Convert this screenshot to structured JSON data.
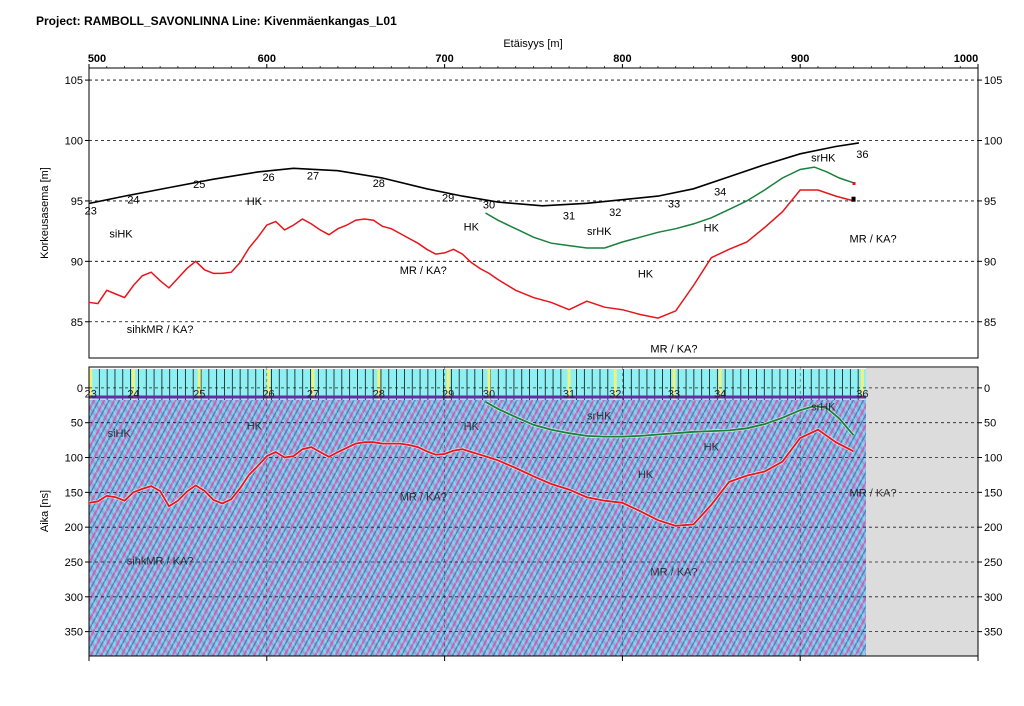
{
  "page": {
    "title": "Project: RAMBOLL_SAVONLINNA  Line: Kivenmäenkangas_L01"
  },
  "colors": {
    "surface": "#000000",
    "interface_red": "#e8141b",
    "interface_green": "#17813a",
    "radar_bg": "#7dc9e6",
    "radar_magenta": "#d452b4",
    "radar_blue": "#2f3fa6",
    "marker_strip": "#8ff0f4",
    "no_data": "#dcdcdc"
  },
  "chart_data": [
    {
      "id": "elevation-profile",
      "type": "line",
      "xlabel": "Etäisyys [m]",
      "ylabel": "Korkeusasema [m]",
      "xlim": [
        500,
        1000
      ],
      "ylim": [
        82,
        106
      ],
      "x_ticks": [
        500,
        600,
        700,
        800,
        900,
        1000
      ],
      "y_ticks": [
        85,
        90,
        95,
        100,
        105
      ],
      "grid": "horizontal-dashed",
      "series": [
        {
          "role": "surface",
          "x": [
            497,
            520,
            545,
            570,
            595,
            615,
            640,
            665,
            690,
            710,
            730,
            755,
            780,
            800,
            820,
            840,
            860,
            880,
            900,
            920,
            933
          ],
          "y": [
            94.7,
            95.4,
            96.1,
            96.8,
            97.4,
            97.7,
            97.5,
            96.9,
            96.0,
            95.4,
            94.9,
            94.6,
            94.8,
            95.1,
            95.4,
            96.0,
            97.0,
            98.0,
            98.9,
            99.5,
            99.8
          ]
        },
        {
          "role": "interface_green",
          "x": [
            723,
            730,
            740,
            750,
            760,
            770,
            780,
            790,
            800,
            810,
            820,
            830,
            840,
            850,
            860,
            870,
            880,
            890,
            900,
            908,
            915,
            922,
            930
          ],
          "y": [
            94.0,
            93.4,
            92.7,
            92.0,
            91.5,
            91.3,
            91.1,
            91.1,
            91.6,
            92.0,
            92.4,
            92.7,
            93.1,
            93.6,
            94.3,
            95.0,
            95.9,
            96.9,
            97.6,
            97.8,
            97.4,
            96.9,
            96.5
          ]
        },
        {
          "role": "interface_red",
          "x": [
            497,
            500,
            505,
            510,
            515,
            520,
            525,
            530,
            535,
            540,
            545,
            550,
            555,
            560,
            565,
            570,
            575,
            580,
            585,
            590,
            595,
            600,
            605,
            610,
            615,
            620,
            625,
            630,
            635,
            640,
            645,
            650,
            655,
            660,
            665,
            670,
            675,
            680,
            685,
            690,
            695,
            700,
            705,
            710,
            715,
            720,
            725,
            730,
            740,
            750,
            760,
            770,
            780,
            790,
            800,
            810,
            820,
            830,
            840,
            850,
            860,
            870,
            880,
            890,
            900,
            910,
            920,
            930
          ],
          "y": [
            86.0,
            86.6,
            86.5,
            87.6,
            87.3,
            87.0,
            88.0,
            88.8,
            89.1,
            88.4,
            87.8,
            88.6,
            89.4,
            90.0,
            89.3,
            89.0,
            89.0,
            89.1,
            89.9,
            91.1,
            92.0,
            93.0,
            93.3,
            92.6,
            93.0,
            93.5,
            93.1,
            92.6,
            92.2,
            92.7,
            93.0,
            93.4,
            93.5,
            93.4,
            92.9,
            92.7,
            92.3,
            91.9,
            91.5,
            91.0,
            90.6,
            90.7,
            91.0,
            90.6,
            89.9,
            89.4,
            89.0,
            88.5,
            87.6,
            87.0,
            86.6,
            86.0,
            86.7,
            86.2,
            86.0,
            85.6,
            85.3,
            85.9,
            88.0,
            90.3,
            91.0,
            91.6,
            92.8,
            94.1,
            95.9,
            95.9,
            95.4,
            95.0
          ]
        }
      ],
      "markers": [
        {
          "label": "23",
          "x": 501,
          "y": 94.2
        },
        {
          "label": "24",
          "x": 525,
          "y": 95.1
        },
        {
          "label": "25",
          "x": 562,
          "y": 96.4
        },
        {
          "label": "26",
          "x": 601,
          "y": 97.0
        },
        {
          "label": "27",
          "x": 626,
          "y": 97.1
        },
        {
          "label": "28",
          "x": 663,
          "y": 96.5
        },
        {
          "label": "29",
          "x": 702,
          "y": 95.3
        },
        {
          "label": "30",
          "x": 725,
          "y": 94.7
        },
        {
          "label": "31",
          "x": 770,
          "y": 93.8
        },
        {
          "label": "32",
          "x": 796,
          "y": 94.1
        },
        {
          "label": "33",
          "x": 829,
          "y": 94.8
        },
        {
          "label": "34",
          "x": 855,
          "y": 95.8
        },
        {
          "label": "36",
          "x": 935,
          "y": 98.9
        }
      ],
      "annotations": [
        {
          "text": "siHK",
          "x": 518,
          "y": 92.3
        },
        {
          "text": "HK",
          "x": 593,
          "y": 95.0
        },
        {
          "text": "HK",
          "x": 715,
          "y": 92.9
        },
        {
          "text": "srHK",
          "x": 787,
          "y": 92.5
        },
        {
          "text": "HK",
          "x": 850,
          "y": 92.8
        },
        {
          "text": "srHK",
          "x": 913,
          "y": 98.6
        },
        {
          "text": "MR / KA?",
          "x": 941,
          "y": 91.9
        },
        {
          "text": "MR / KA?",
          "x": 688,
          "y": 89.3
        },
        {
          "text": "HK",
          "x": 813,
          "y": 89.0
        },
        {
          "text": "sihkMR / KA?",
          "x": 540,
          "y": 84.4
        },
        {
          "text": "MR / KA?",
          "x": 829,
          "y": 82.8
        }
      ]
    },
    {
      "id": "radargram",
      "type": "heatmap",
      "ylabel": "Aika [ns]",
      "xlim": [
        500,
        1000
      ],
      "ylim": [
        385,
        -30
      ],
      "y_ticks": [
        0,
        50,
        100,
        150,
        200,
        250,
        300,
        350
      ],
      "data_extent_x": [
        497,
        933
      ],
      "grid": "horizontal-dashed",
      "series": [
        {
          "role": "interface_green",
          "x": [
            723,
            730,
            740,
            750,
            760,
            770,
            780,
            790,
            800,
            810,
            820,
            830,
            840,
            850,
            860,
            870,
            880,
            890,
            900,
            908,
            915,
            922,
            930
          ],
          "y": [
            20,
            30,
            42,
            53,
            60,
            65,
            69,
            70,
            70,
            69,
            67,
            65,
            63,
            62,
            61,
            58,
            52,
            43,
            32,
            26,
            29,
            44,
            68
          ]
        },
        {
          "role": "interface_red",
          "x": [
            497,
            500,
            505,
            510,
            515,
            520,
            525,
            530,
            535,
            540,
            545,
            550,
            555,
            560,
            565,
            570,
            575,
            580,
            585,
            590,
            595,
            600,
            605,
            610,
            615,
            620,
            625,
            630,
            635,
            640,
            645,
            650,
            655,
            660,
            665,
            670,
            675,
            680,
            685,
            690,
            695,
            700,
            705,
            710,
            715,
            720,
            725,
            730,
            740,
            750,
            760,
            770,
            780,
            790,
            800,
            810,
            820,
            830,
            840,
            850,
            860,
            870,
            880,
            890,
            900,
            910,
            920,
            930
          ],
          "y": [
            168,
            165,
            163,
            155,
            157,
            162,
            150,
            145,
            141,
            148,
            170,
            162,
            149,
            140,
            148,
            161,
            166,
            160,
            144,
            125,
            112,
            98,
            92,
            100,
            98,
            88,
            85,
            92,
            99,
            92,
            86,
            80,
            78,
            78,
            80,
            80,
            80,
            82,
            85,
            91,
            96,
            95,
            90,
            88,
            92,
            96,
            100,
            104,
            115,
            127,
            138,
            146,
            157,
            162,
            165,
            177,
            190,
            198,
            196,
            168,
            135,
            126,
            120,
            106,
            72,
            60,
            78,
            91
          ]
        }
      ],
      "markers": [
        {
          "label": "23",
          "x": 501
        },
        {
          "label": "24",
          "x": 525
        },
        {
          "label": "25",
          "x": 562
        },
        {
          "label": "26",
          "x": 601
        },
        {
          "label": "27",
          "x": 626
        },
        {
          "label": "28",
          "x": 663
        },
        {
          "label": "29",
          "x": 702
        },
        {
          "label": "30",
          "x": 725
        },
        {
          "label": "31",
          "x": 770
        },
        {
          "label": "32",
          "x": 796
        },
        {
          "label": "33",
          "x": 829
        },
        {
          "label": "34",
          "x": 855
        },
        {
          "label": "36",
          "x": 935
        }
      ],
      "annotations": [
        {
          "text": "siHK",
          "x": 517,
          "y": 65
        },
        {
          "text": "HK",
          "x": 593,
          "y": 54
        },
        {
          "text": "HK",
          "x": 715,
          "y": 55
        },
        {
          "text": "srHK",
          "x": 787,
          "y": 40
        },
        {
          "text": "HK",
          "x": 850,
          "y": 84
        },
        {
          "text": "srHK",
          "x": 913,
          "y": 27
        },
        {
          "text": "MR / KA?",
          "x": 941,
          "y": 150
        },
        {
          "text": "MR / KA?",
          "x": 688,
          "y": 156
        },
        {
          "text": "HK",
          "x": 813,
          "y": 124
        },
        {
          "text": "sihkMR / KA?",
          "x": 540,
          "y": 248
        },
        {
          "text": "MR / KA?",
          "x": 829,
          "y": 264
        }
      ]
    }
  ]
}
